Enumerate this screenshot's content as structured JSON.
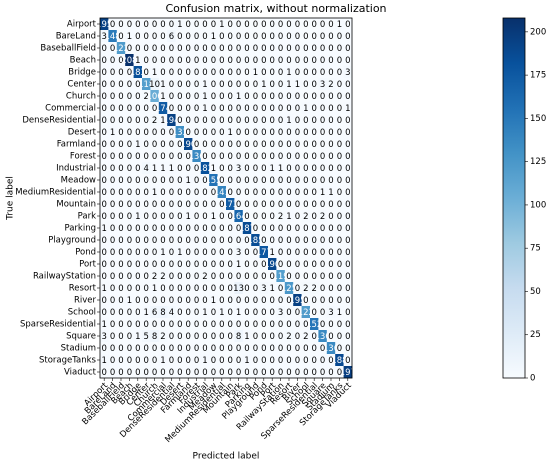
{
  "chart_data": {
    "type": "heatmap",
    "title": "Confusion matrix, without normalization",
    "xlabel": "Predicted label",
    "ylabel": "True label",
    "categories": [
      "Airport",
      "BareLand",
      "BaseballField",
      "Beach",
      "Bridge",
      "Center",
      "Church",
      "Commercial",
      "DenseResidential",
      "Desert",
      "Farmland",
      "Forest",
      "Industrial",
      "Meadow",
      "MediumResidential",
      "Mountain",
      "Park",
      "Parking",
      "Playground",
      "Pond",
      "Port",
      "RailwayStation",
      "Resort",
      "River",
      "School",
      "SparseResidential",
      "Square",
      "Stadium",
      "StorageTanks",
      "Viaduct"
    ],
    "matrix": [
      [
        195,
        0,
        0,
        0,
        0,
        0,
        0,
        0,
        0,
        1,
        0,
        0,
        0,
        0,
        1,
        0,
        0,
        0,
        0,
        0,
        0,
        0,
        0,
        0,
        0,
        0,
        0,
        0,
        1,
        0
      ],
      [
        3,
        148,
        0,
        1,
        0,
        0,
        0,
        0,
        6,
        0,
        0,
        0,
        0,
        1,
        0,
        0,
        0,
        0,
        0,
        0,
        0,
        0,
        0,
        0,
        0,
        0,
        0,
        0,
        0,
        0
      ],
      [
        0,
        0,
        122,
        0,
        0,
        0,
        0,
        0,
        0,
        0,
        0,
        0,
        0,
        0,
        0,
        0,
        0,
        0,
        0,
        0,
        0,
        0,
        0,
        0,
        0,
        0,
        0,
        0,
        0,
        0
      ],
      [
        0,
        0,
        0,
        208,
        1,
        0,
        0,
        0,
        0,
        0,
        0,
        0,
        0,
        0,
        0,
        0,
        0,
        0,
        0,
        0,
        0,
        0,
        0,
        0,
        0,
        0,
        0,
        0,
        0,
        0
      ],
      [
        0,
        0,
        0,
        0,
        183,
        0,
        1,
        0,
        0,
        0,
        0,
        0,
        0,
        0,
        0,
        0,
        0,
        0,
        1,
        0,
        0,
        0,
        1,
        0,
        0,
        0,
        0,
        0,
        0,
        3
      ],
      [
        0,
        0,
        0,
        0,
        0,
        118,
        10,
        1,
        0,
        0,
        0,
        0,
        1,
        0,
        0,
        0,
        0,
        0,
        0,
        1,
        0,
        0,
        1,
        1,
        0,
        0,
        3,
        2,
        0,
        0
      ],
      [
        0,
        0,
        0,
        0,
        0,
        2,
        106,
        1,
        0,
        0,
        0,
        0,
        1,
        0,
        0,
        0,
        1,
        0,
        0,
        0,
        0,
        0,
        0,
        0,
        0,
        0,
        0,
        0,
        0,
        0
      ],
      [
        0,
        0,
        0,
        0,
        0,
        0,
        0,
        174,
        0,
        0,
        0,
        0,
        1,
        0,
        0,
        0,
        0,
        0,
        0,
        0,
        0,
        0,
        0,
        0,
        1,
        0,
        0,
        0,
        0,
        1
      ],
      [
        0,
        0,
        0,
        0,
        0,
        0,
        2,
        1,
        194,
        0,
        0,
        0,
        0,
        0,
        0,
        0,
        0,
        0,
        0,
        0,
        0,
        0,
        1,
        0,
        0,
        0,
        0,
        0,
        0,
        0
      ],
      [
        0,
        1,
        0,
        0,
        0,
        0,
        0,
        0,
        0,
        133,
        0,
        0,
        0,
        0,
        0,
        1,
        0,
        0,
        0,
        0,
        0,
        0,
        0,
        0,
        0,
        0,
        0,
        0,
        0,
        0
      ],
      [
        0,
        0,
        0,
        0,
        1,
        0,
        0,
        0,
        0,
        0,
        190,
        0,
        0,
        0,
        0,
        0,
        0,
        0,
        0,
        0,
        0,
        0,
        0,
        0,
        0,
        0,
        0,
        0,
        0,
        0
      ],
      [
        0,
        0,
        0,
        0,
        0,
        0,
        0,
        0,
        0,
        0,
        0,
        136,
        0,
        0,
        0,
        0,
        0,
        0,
        0,
        0,
        0,
        0,
        0,
        0,
        0,
        0,
        0,
        0,
        0,
        0
      ],
      [
        0,
        0,
        0,
        0,
        0,
        4,
        1,
        1,
        1,
        0,
        0,
        0,
        182,
        1,
        0,
        0,
        3,
        0,
        0,
        0,
        1,
        1,
        0,
        0,
        0,
        0,
        0,
        0,
        0,
        0
      ],
      [
        0,
        0,
        0,
        0,
        0,
        0,
        0,
        0,
        0,
        0,
        1,
        0,
        0,
        155,
        0,
        0,
        0,
        0,
        0,
        0,
        0,
        0,
        0,
        0,
        0,
        0,
        0,
        0,
        0,
        0
      ],
      [
        0,
        0,
        0,
        0,
        0,
        0,
        1,
        0,
        0,
        0,
        0,
        0,
        0,
        0,
        141,
        0,
        0,
        0,
        0,
        0,
        0,
        0,
        0,
        0,
        0,
        0,
        1,
        1,
        0,
        0
      ],
      [
        0,
        0,
        0,
        0,
        0,
        0,
        0,
        0,
        0,
        0,
        0,
        0,
        0,
        0,
        0,
        173,
        0,
        0,
        0,
        0,
        0,
        0,
        0,
        0,
        0,
        0,
        0,
        0,
        0,
        0
      ],
      [
        0,
        0,
        0,
        0,
        1,
        0,
        0,
        0,
        0,
        0,
        1,
        0,
        0,
        1,
        0,
        0,
        164,
        0,
        0,
        0,
        0,
        2,
        1,
        0,
        2,
        0,
        2,
        0,
        0,
        0
      ],
      [
        1,
        0,
        0,
        0,
        0,
        0,
        0,
        0,
        0,
        0,
        0,
        0,
        0,
        0,
        0,
        0,
        0,
        187,
        0,
        0,
        0,
        0,
        0,
        0,
        0,
        0,
        0,
        0,
        0,
        0
      ],
      [
        0,
        0,
        0,
        0,
        0,
        0,
        0,
        0,
        0,
        0,
        0,
        0,
        0,
        0,
        0,
        0,
        0,
        0,
        185,
        0,
        0,
        0,
        0,
        0,
        0,
        0,
        0,
        0,
        0,
        0
      ],
      [
        0,
        0,
        0,
        0,
        0,
        0,
        0,
        1,
        0,
        1,
        0,
        0,
        0,
        0,
        0,
        0,
        3,
        0,
        0,
        177,
        1,
        0,
        0,
        0,
        0,
        0,
        0,
        0,
        0,
        0
      ],
      [
        0,
        0,
        0,
        0,
        0,
        0,
        0,
        0,
        0,
        0,
        0,
        0,
        0,
        0,
        0,
        0,
        1,
        0,
        0,
        0,
        190,
        0,
        0,
        0,
        0,
        0,
        0,
        0,
        0,
        0
      ],
      [
        0,
        0,
        0,
        0,
        0,
        0,
        2,
        2,
        0,
        0,
        0,
        0,
        2,
        0,
        0,
        0,
        0,
        0,
        0,
        0,
        0,
        119,
        0,
        0,
        0,
        0,
        0,
        0,
        0,
        0
      ],
      [
        1,
        0,
        0,
        0,
        0,
        0,
        1,
        0,
        0,
        0,
        0,
        0,
        0,
        0,
        0,
        0,
        13,
        0,
        0,
        3,
        1,
        0,
        125,
        0,
        2,
        2,
        0,
        0,
        0,
        0
      ],
      [
        0,
        0,
        0,
        1,
        0,
        0,
        0,
        0,
        0,
        0,
        0,
        0,
        0,
        1,
        0,
        0,
        0,
        0,
        0,
        0,
        0,
        0,
        0,
        195,
        0,
        0,
        0,
        0,
        0,
        0
      ],
      [
        0,
        0,
        0,
        0,
        0,
        1,
        6,
        8,
        4,
        0,
        0,
        0,
        1,
        0,
        1,
        0,
        1,
        0,
        0,
        0,
        0,
        3,
        0,
        0,
        122,
        0,
        0,
        3,
        1,
        0
      ],
      [
        1,
        0,
        0,
        0,
        0,
        0,
        0,
        0,
        0,
        0,
        0,
        0,
        0,
        0,
        0,
        0,
        0,
        0,
        0,
        0,
        0,
        0,
        0,
        0,
        0,
        152,
        0,
        0,
        0,
        0
      ],
      [
        3,
        0,
        0,
        0,
        1,
        5,
        8,
        2,
        0,
        0,
        0,
        0,
        0,
        0,
        0,
        0,
        8,
        1,
        0,
        0,
        0,
        0,
        2,
        0,
        2,
        0,
        136,
        0,
        0,
        0
      ],
      [
        0,
        0,
        0,
        0,
        0,
        0,
        0,
        0,
        0,
        0,
        0,
        0,
        0,
        0,
        0,
        0,
        0,
        0,
        0,
        0,
        0,
        0,
        0,
        0,
        0,
        0,
        0,
        136,
        0,
        0
      ],
      [
        1,
        0,
        0,
        0,
        0,
        0,
        0,
        1,
        0,
        0,
        0,
        0,
        1,
        0,
        0,
        0,
        0,
        1,
        0,
        0,
        0,
        0,
        0,
        0,
        0,
        0,
        0,
        0,
        188,
        0
      ],
      [
        0,
        0,
        0,
        0,
        0,
        0,
        0,
        0,
        0,
        0,
        0,
        0,
        0,
        0,
        0,
        0,
        0,
        0,
        0,
        0,
        0,
        0,
        0,
        0,
        0,
        0,
        0,
        0,
        0,
        197
      ]
    ],
    "clim": [
      0,
      208
    ],
    "cticks": [
      0,
      25,
      50,
      75,
      100,
      125,
      150,
      175,
      200
    ],
    "colors": [
      "#f7fbff",
      "#deebf7",
      "#c6dbef",
      "#9ecae1",
      "#6baed6",
      "#4292c6",
      "#2171b5",
      "#08519c",
      "#08306b"
    ]
  }
}
